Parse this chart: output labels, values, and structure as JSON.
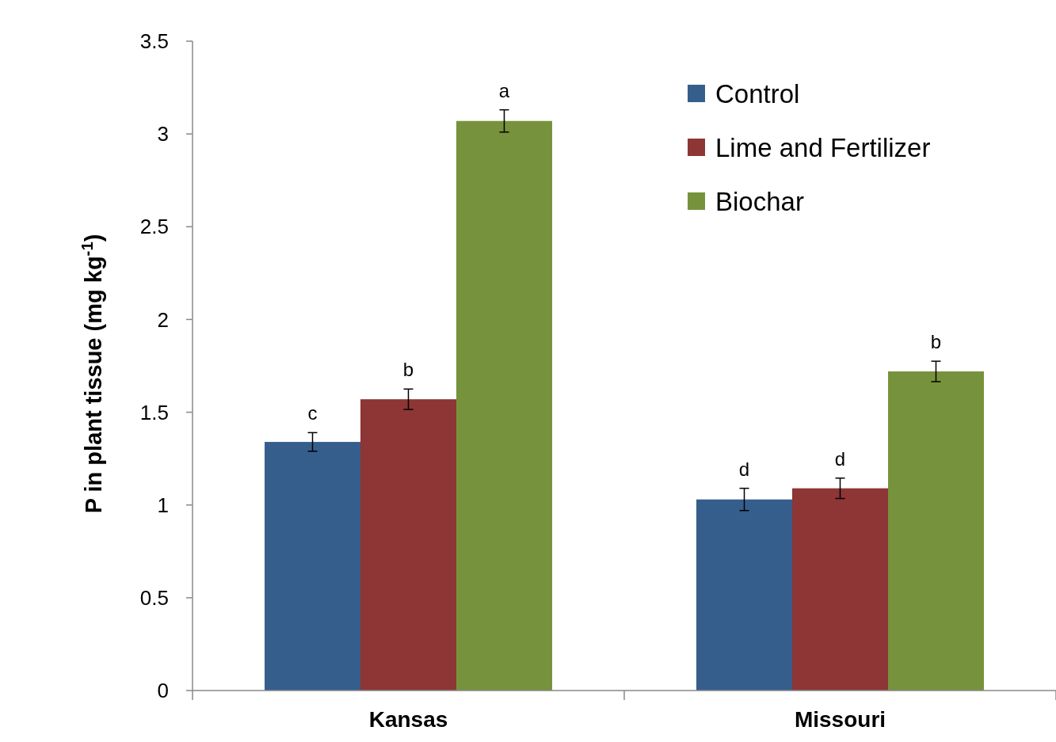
{
  "chart_data": {
    "type": "bar",
    "ylabel": "P in plant tissue (mg kg$^{-1}$)",
    "categories": [
      "Kansas",
      "Missouri"
    ],
    "series": [
      {
        "name": "Control",
        "color": "#365e8c",
        "values": [
          1.34,
          1.03
        ],
        "errors": [
          0.05,
          0.06
        ]
      },
      {
        "name": "Lime and Fertilizer",
        "color": "#8e3536",
        "values": [
          1.57,
          1.09
        ],
        "errors": [
          0.055,
          0.055
        ]
      },
      {
        "name": "Biochar",
        "color": "#77923c",
        "values": [
          3.07,
          1.72
        ],
        "errors": [
          0.06,
          0.055
        ]
      }
    ],
    "ylim": [
      0,
      3.5
    ],
    "yticks": [
      0,
      0.5,
      1,
      1.5,
      2,
      2.5,
      3,
      3.5
    ],
    "grid": false,
    "legend": "top right",
    "annotations": [
      "c",
      "b",
      "a",
      "d",
      "d",
      "b"
    ]
  }
}
